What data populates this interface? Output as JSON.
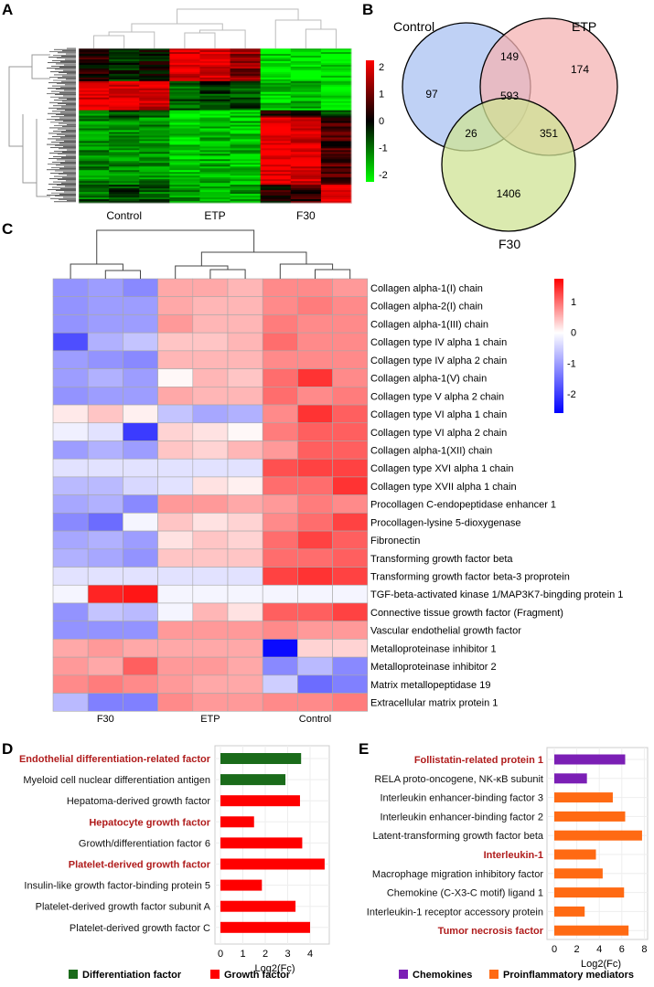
{
  "panels": {
    "a": "A",
    "b": "B",
    "c": "C",
    "d": "D",
    "e": "E"
  },
  "panel_a": {
    "type": "heatmap",
    "groups": [
      "Control",
      "ETP",
      "F30"
    ],
    "colorbar": {
      "ticks": [
        "2",
        "1",
        "0",
        "-1",
        "-2"
      ],
      "low_color": "#00ff00",
      "mid_color": "#000000",
      "high_color": "#ff0000"
    }
  },
  "panel_b": {
    "type": "venn",
    "sets": [
      {
        "name": "Control",
        "color": "#a9c1f2"
      },
      {
        "name": "ETP",
        "color": "#f4b3b3"
      },
      {
        "name": "F30",
        "color": "#cfe394"
      }
    ],
    "regions": {
      "control_only": "97",
      "etp_only": "174",
      "f30_only": "1406",
      "control_etp": "149",
      "control_f30": "26",
      "etp_f30": "351",
      "all": "593"
    }
  },
  "chart_data": [
    {
      "type": "heatmap",
      "panel": "C",
      "columns": [
        "F30",
        "ETP",
        "Control"
      ],
      "replicates_per_group": 3,
      "colorbar": {
        "ticks": [
          "1",
          "0",
          "-1",
          "-2"
        ],
        "low_color": "#0000ff",
        "mid_color": "#ffffff",
        "high_color": "#ff0000",
        "range": [
          -2.6,
          1.75
        ]
      },
      "rows": [
        {
          "label": "Collagen alpha-1(I) chain",
          "values": [
            -1.1,
            -1,
            -1.2,
            0.6,
            0.6,
            0.5,
            0.8,
            0.8,
            0.7
          ]
        },
        {
          "label": "Collagen alpha-2(I) chain",
          "values": [
            -1.1,
            -1,
            -1,
            0.6,
            0.5,
            0.5,
            0.8,
            0.9,
            0.8
          ]
        },
        {
          "label": "Collagen alpha-1(III) chain",
          "values": [
            -1.1,
            -1,
            -1,
            0.7,
            0.5,
            0.5,
            0.9,
            0.8,
            0.8
          ]
        },
        {
          "label": "Collagen type IV alpha 1 chain",
          "values": [
            -1.8,
            -0.8,
            -0.6,
            0.4,
            0.4,
            0.5,
            1.0,
            0.8,
            0.8
          ]
        },
        {
          "label": "Collagen type IV alpha 2 chain",
          "values": [
            -1,
            -1.1,
            -1.2,
            0.5,
            0.5,
            0.5,
            0.8,
            0.8,
            0.8
          ]
        },
        {
          "label": "Collagen alpha-1(V) chain",
          "values": [
            -1,
            -0.8,
            -1,
            0.05,
            0.5,
            0.4,
            1.0,
            1.4,
            0.8
          ]
        },
        {
          "label": "Collagen type V alpha 2 chain",
          "values": [
            -1.1,
            -1,
            -1,
            0.6,
            0.5,
            0.5,
            1.0,
            0.8,
            0.9
          ]
        },
        {
          "label": "Collagen type VI alpha 1 chain",
          "values": [
            0.15,
            0.4,
            0.1,
            -0.6,
            -0.9,
            -0.8,
            0.8,
            1.4,
            1.1
          ]
        },
        {
          "label": "Collagen type VI alpha 2 chain",
          "values": [
            -0.15,
            -0.3,
            -2.0,
            0.3,
            0.2,
            0.05,
            0.9,
            1.1,
            1.1
          ]
        },
        {
          "label": "Collagen alpha-1(XII) chain",
          "values": [
            -1,
            -0.8,
            -1,
            0.4,
            0.3,
            0.5,
            0.7,
            1.1,
            1.1
          ]
        },
        {
          "label": "Collagen type XVI alpha 1 chain",
          "values": [
            -0.3,
            -0.3,
            -0.3,
            -0.3,
            -0.3,
            -0.3,
            1.2,
            1.3,
            1.3
          ]
        },
        {
          "label": "Collagen type XVII alpha 1 chain",
          "values": [
            -0.7,
            -0.7,
            -0.4,
            -0.3,
            0.2,
            0.1,
            1.0,
            1.0,
            1.4
          ]
        },
        {
          "label": "Procollagen C-endopeptidase enhancer 1",
          "values": [
            -0.9,
            -0.8,
            -1.2,
            0.7,
            0.7,
            0.6,
            0.7,
            0.9,
            0.8
          ]
        },
        {
          "label": "Procollagen-lysine 5-dioxygenase",
          "values": [
            -1.2,
            -1.5,
            -0.1,
            0.4,
            0.2,
            0.3,
            0.8,
            1.0,
            1.3
          ]
        },
        {
          "label": "Fibronectin",
          "values": [
            -0.9,
            -0.8,
            -1.0,
            0.2,
            0.4,
            0.3,
            1.0,
            1.3,
            1.1
          ]
        },
        {
          "label": "Transforming growth factor beta",
          "values": [
            -0.8,
            -0.9,
            -1.1,
            0.4,
            0.4,
            0.4,
            1.0,
            1.0,
            1.1
          ]
        },
        {
          "label": "Transforming growth factor beta-3 proprotein",
          "values": [
            -0.3,
            -0.3,
            -0.3,
            -0.3,
            -0.3,
            -0.3,
            1.3,
            1.4,
            1.3
          ]
        },
        {
          "label": "TGF-beta-activated kinase 1/MAP3K7-bingding protein 1",
          "values": [
            -0.1,
            1.5,
            1.6,
            -0.1,
            -0.1,
            -0.1,
            -0.1,
            -0.1,
            -0.1
          ]
        },
        {
          "label": "Connective tissue growth factor (Fragment)",
          "values": [
            -1.1,
            -0.6,
            -0.7,
            -0.1,
            0.5,
            0.2,
            1.1,
            1.1,
            1.3
          ]
        },
        {
          "label": "Vascular endothelial growth factor",
          "values": [
            -1.1,
            -1.1,
            -1.1,
            0.7,
            0.7,
            0.7,
            0.8,
            0.7,
            0.7
          ]
        },
        {
          "label": "Metalloproteinase inhibitor 1",
          "values": [
            0.6,
            0.7,
            0.6,
            0.6,
            0.6,
            0.6,
            -2.5,
            0.3,
            0.3
          ]
        },
        {
          "label": "Metalloproteinase inhibitor 2",
          "values": [
            0.7,
            0.6,
            1.1,
            0.7,
            0.7,
            0.6,
            -1.2,
            -0.7,
            -1.2
          ]
        },
        {
          "label": "Matrix metallopeptidase 19",
          "values": [
            0.8,
            0.9,
            0.8,
            0.7,
            0.6,
            0.6,
            -0.5,
            -1.5,
            -1.3
          ]
        },
        {
          "label": "Extracellular matrix protein 1",
          "values": [
            -0.7,
            -1.3,
            -1.3,
            0.8,
            0.7,
            0.7,
            0.8,
            0.8,
            0.9
          ]
        }
      ]
    },
    {
      "type": "bar",
      "panel": "D",
      "orientation": "horizontal",
      "xlabel": "Log2(Fc)",
      "xlim": [
        0,
        4.8
      ],
      "xticks": [
        "0",
        "1",
        "2",
        "3",
        "4"
      ],
      "grid": true,
      "legend": "bottom",
      "series": [
        {
          "name": "Differentiation factor",
          "color": "#1a6b1a"
        },
        {
          "name": "Growth factor",
          "color": "#ff0000"
        }
      ],
      "bars": [
        {
          "label": "Endothelial differentiation-related factor",
          "value": 3.6,
          "series": 0,
          "highlight": true
        },
        {
          "label": "Myeloid cell nuclear differentiation antigen",
          "value": 2.9,
          "series": 0,
          "highlight": false
        },
        {
          "label": "Hepatoma-derived growth factor",
          "value": 3.55,
          "series": 1,
          "highlight": false
        },
        {
          "label": "Hepatocyte growth factor",
          "value": 1.5,
          "series": 1,
          "highlight": true
        },
        {
          "label": "Growth/differentiation factor 6",
          "value": 3.65,
          "series": 1,
          "highlight": false
        },
        {
          "label": "Platelet-derived growth factor",
          "value": 4.65,
          "series": 1,
          "highlight": true
        },
        {
          "label": "Insulin-like growth factor-binding protein 5",
          "value": 1.85,
          "series": 1,
          "highlight": false
        },
        {
          "label": "Platelet-derived growth factor subunit A",
          "value": 3.35,
          "series": 1,
          "highlight": false
        },
        {
          "label": "Platelet-derived growth factor C",
          "value": 4.0,
          "series": 1,
          "highlight": false
        }
      ]
    },
    {
      "type": "bar",
      "panel": "E",
      "orientation": "horizontal",
      "xlabel": "Log2(Fc)",
      "xlim": [
        0,
        8.2
      ],
      "xticks": [
        "0",
        "2",
        "4",
        "6",
        "8"
      ],
      "grid": true,
      "legend": "bottom",
      "series": [
        {
          "name": "Chemokines",
          "color": "#7b1fb5"
        },
        {
          "name": "Proinflammatory mediators",
          "color": "#ff6a13"
        }
      ],
      "bars": [
        {
          "label": "Follistatin-related protein 1",
          "value": 6.3,
          "series": 0,
          "highlight": true
        },
        {
          "label": "RELA proto-oncogene, NK-κB subunit",
          "value": 2.9,
          "series": 0,
          "highlight": false
        },
        {
          "label": "Interleukin enhancer-binding factor 3",
          "value": 5.2,
          "series": 1,
          "highlight": false
        },
        {
          "label": "Interleukin enhancer-binding factor 2",
          "value": 6.3,
          "series": 1,
          "highlight": false
        },
        {
          "label": "Latent-transforming growth factor beta",
          "value": 7.8,
          "series": 1,
          "highlight": false
        },
        {
          "label": "Interleukin-1",
          "value": 3.7,
          "series": 1,
          "highlight": true
        },
        {
          "label": "Macrophage migration inhibitory factor",
          "value": 4.3,
          "series": 1,
          "highlight": false
        },
        {
          "label": "Chemokine (C-X3-C motif) ligand 1",
          "value": 6.2,
          "series": 1,
          "highlight": false
        },
        {
          "label": "Interleukin-1 receptor accessory protein",
          "value": 2.7,
          "series": 1,
          "highlight": false
        },
        {
          "label": "Tumor necrosis factor",
          "value": 6.6,
          "series": 1,
          "highlight": true
        }
      ]
    }
  ],
  "highlight_color": "#b01c1c"
}
